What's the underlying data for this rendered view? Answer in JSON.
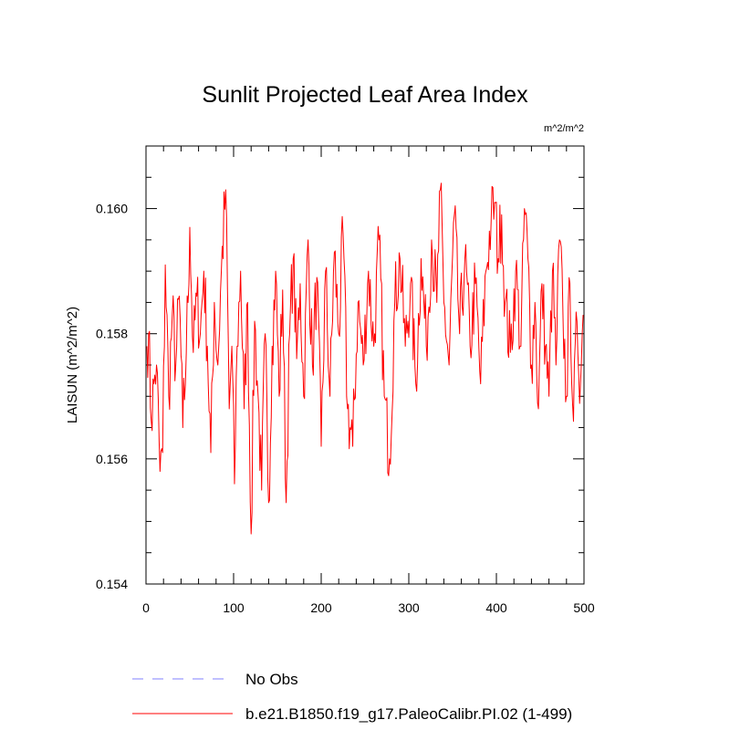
{
  "chart_data": {
    "type": "line",
    "title": "Sunlit Projected Leaf Area Index",
    "units": "m^2/m^2",
    "xlabel": "",
    "ylabel": "LAISUN  (m^2/m^2)",
    "xlim": [
      0,
      500
    ],
    "ylim": [
      0.154,
      0.161
    ],
    "x_ticks": [
      0,
      100,
      200,
      300,
      400,
      500
    ],
    "x_tick_labels": [
      "0",
      "100",
      "200",
      "300",
      "400",
      "500"
    ],
    "y_ticks": [
      0.154,
      0.156,
      0.158,
      0.16
    ],
    "y_tick_labels": [
      "0.154",
      "0.156",
      "0.158",
      "0.160"
    ],
    "series": [
      {
        "name": "b.e21.B1850.f19_g17.PaleoCalibr.PI.02 (1-499)",
        "color": "#ff0000",
        "style": "solid",
        "x_range": [
          1,
          499
        ],
        "keypoints": [
          [
            1,
            0.1578
          ],
          [
            3,
            0.158
          ],
          [
            6,
            0.1566
          ],
          [
            9,
            0.1572
          ],
          [
            12,
            0.1575
          ],
          [
            16,
            0.1558
          ],
          [
            19,
            0.1561
          ],
          [
            22,
            0.1591
          ],
          [
            26,
            0.157
          ],
          [
            30,
            0.1583
          ],
          [
            34,
            0.1575
          ],
          [
            38,
            0.1586
          ],
          [
            42,
            0.1565
          ],
          [
            46,
            0.1577
          ],
          [
            50,
            0.1597
          ],
          [
            54,
            0.1577
          ],
          [
            58,
            0.1586
          ],
          [
            62,
            0.158
          ],
          [
            66,
            0.159
          ],
          [
            70,
            0.1578
          ],
          [
            74,
            0.1561
          ],
          [
            78,
            0.1585
          ],
          [
            82,
            0.1575
          ],
          [
            86,
            0.159
          ],
          [
            91,
            0.1603
          ],
          [
            95,
            0.1568
          ],
          [
            98,
            0.1578
          ],
          [
            101,
            0.1556
          ],
          [
            104,
            0.1578
          ],
          [
            108,
            0.159
          ],
          [
            112,
            0.1568
          ],
          [
            116,
            0.1585
          ],
          [
            120,
            0.1548
          ],
          [
            124,
            0.1582
          ],
          [
            128,
            0.157
          ],
          [
            132,
            0.1555
          ],
          [
            136,
            0.158
          ],
          [
            140,
            0.1553
          ],
          [
            144,
            0.1578
          ],
          [
            148,
            0.159
          ],
          [
            152,
            0.157
          ],
          [
            156,
            0.1587
          ],
          [
            160,
            0.1553
          ],
          [
            164,
            0.158
          ],
          [
            168,
            0.1592
          ],
          [
            172,
            0.1576
          ],
          [
            176,
            0.1588
          ],
          [
            180,
            0.157
          ],
          [
            185,
            0.1595
          ],
          [
            190,
            0.1575
          ],
          [
            195,
            0.1589
          ],
          [
            200,
            0.1562
          ],
          [
            205,
            0.159
          ],
          [
            210,
            0.157
          ],
          [
            215,
            0.1593
          ],
          [
            220,
            0.158
          ],
          [
            225,
            0.1596
          ],
          [
            230,
            0.1568
          ],
          [
            236,
            0.1562
          ],
          [
            242,
            0.1585
          ],
          [
            248,
            0.1575
          ],
          [
            254,
            0.159
          ],
          [
            260,
            0.1578
          ],
          [
            266,
            0.1595
          ],
          [
            272,
            0.157
          ],
          [
            278,
            0.156
          ],
          [
            284,
            0.1585
          ],
          [
            290,
            0.1592
          ],
          [
            296,
            0.1578
          ],
          [
            302,
            0.1588
          ],
          [
            308,
            0.1572
          ],
          [
            314,
            0.1592
          ],
          [
            320,
            0.1578
          ],
          [
            326,
            0.1595
          ],
          [
            332,
            0.1585
          ],
          [
            336,
            0.1603
          ],
          [
            340,
            0.1585
          ],
          [
            346,
            0.1575
          ],
          [
            352,
            0.1599
          ],
          [
            358,
            0.158
          ],
          [
            364,
            0.1592
          ],
          [
            370,
            0.1578
          ],
          [
            376,
            0.1588
          ],
          [
            382,
            0.1572
          ],
          [
            388,
            0.159
          ],
          [
            394,
            0.1598
          ],
          [
            398,
            0.1601
          ],
          [
            402,
            0.1592
          ],
          [
            406,
            0.1599
          ],
          [
            410,
            0.1585
          ],
          [
            416,
            0.1577
          ],
          [
            422,
            0.159
          ],
          [
            428,
            0.1578
          ],
          [
            432,
            0.16
          ],
          [
            436,
            0.1592
          ],
          [
            440,
            0.1575
          ],
          [
            444,
            0.1585
          ],
          [
            448,
            0.1568
          ],
          [
            452,
            0.1588
          ],
          [
            456,
            0.1578
          ],
          [
            460,
            0.157
          ],
          [
            464,
            0.159
          ],
          [
            468,
            0.1575
          ],
          [
            472,
            0.1595
          ],
          [
            476,
            0.1583
          ],
          [
            480,
            0.157
          ],
          [
            484,
            0.1588
          ],
          [
            488,
            0.1566
          ],
          [
            492,
            0.1582
          ],
          [
            496,
            0.1572
          ],
          [
            499,
            0.1583
          ]
        ]
      },
      {
        "name": "No Obs",
        "color": "#8080ff",
        "style": "dashed",
        "keypoints": []
      }
    ],
    "legend_position": "bottom-left"
  }
}
